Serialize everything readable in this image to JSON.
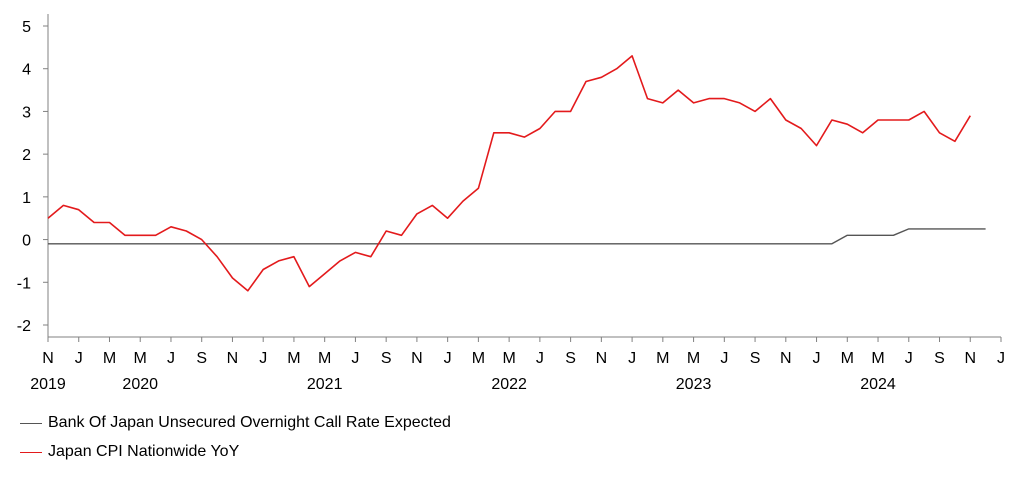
{
  "chart_data": {
    "type": "line",
    "ylim": [
      -2.2,
      5
    ],
    "yticks": [
      -2,
      -1,
      0,
      1,
      2,
      3,
      4,
      5
    ],
    "x_start": "2019-11",
    "x_end": "2025-01",
    "x_month_labels": [
      "N",
      "J",
      "M",
      "M",
      "J",
      "S",
      "N",
      "J",
      "M",
      "M",
      "J",
      "S",
      "N",
      "J",
      "M",
      "M",
      "J",
      "S",
      "N",
      "J",
      "M",
      "M",
      "J",
      "S",
      "N",
      "J",
      "M",
      "M",
      "J",
      "S",
      "N",
      "J",
      "M",
      "M",
      "J",
      "S",
      "N",
      "J"
    ],
    "year_labels": [
      {
        "label": "2019",
        "month": "2019-11"
      },
      {
        "label": "2020",
        "month": "2020-05"
      },
      {
        "label": "2021",
        "month": "2021-05"
      },
      {
        "label": "2022",
        "month": "2022-05"
      },
      {
        "label": "2023",
        "month": "2023-05"
      },
      {
        "label": "2024",
        "month": "2024-05"
      }
    ],
    "grid": false,
    "legend_position": "bottom-left",
    "series": [
      {
        "name": "Bank Of Japan Unsecured Overnight Call Rate Expected",
        "color": "#555555",
        "points": [
          [
            "2019-11",
            -0.1
          ],
          [
            "2024-02",
            -0.1
          ],
          [
            "2024-03",
            0.1
          ],
          [
            "2024-06",
            0.1
          ],
          [
            "2024-07",
            0.25
          ],
          [
            "2024-12",
            0.25
          ]
        ]
      },
      {
        "name": "Japan CPI Nationwide YoY",
        "color": "#e31a1c",
        "points": [
          [
            "2019-11",
            0.5
          ],
          [
            "2019-12",
            0.8
          ],
          [
            "2020-01",
            0.7
          ],
          [
            "2020-02",
            0.4
          ],
          [
            "2020-03",
            0.4
          ],
          [
            "2020-04",
            0.1
          ],
          [
            "2020-05",
            0.1
          ],
          [
            "2020-06",
            0.1
          ],
          [
            "2020-07",
            0.3
          ],
          [
            "2020-08",
            0.2
          ],
          [
            "2020-09",
            0.0
          ],
          [
            "2020-10",
            -0.4
          ],
          [
            "2020-11",
            -0.9
          ],
          [
            "2020-12",
            -1.2
          ],
          [
            "2021-01",
            -0.7
          ],
          [
            "2021-02",
            -0.5
          ],
          [
            "2021-03",
            -0.4
          ],
          [
            "2021-04",
            -1.1
          ],
          [
            "2021-05",
            -0.8
          ],
          [
            "2021-06",
            -0.5
          ],
          [
            "2021-07",
            -0.3
          ],
          [
            "2021-08",
            -0.4
          ],
          [
            "2021-09",
            0.2
          ],
          [
            "2021-10",
            0.1
          ],
          [
            "2021-11",
            0.6
          ],
          [
            "2021-12",
            0.8
          ],
          [
            "2022-01",
            0.5
          ],
          [
            "2022-02",
            0.9
          ],
          [
            "2022-03",
            1.2
          ],
          [
            "2022-04",
            2.5
          ],
          [
            "2022-05",
            2.5
          ],
          [
            "2022-06",
            2.4
          ],
          [
            "2022-07",
            2.6
          ],
          [
            "2022-08",
            3.0
          ],
          [
            "2022-09",
            3.0
          ],
          [
            "2022-10",
            3.7
          ],
          [
            "2022-11",
            3.8
          ],
          [
            "2022-12",
            4.0
          ],
          [
            "2023-01",
            4.3
          ],
          [
            "2023-02",
            3.3
          ],
          [
            "2023-03",
            3.2
          ],
          [
            "2023-04",
            3.5
          ],
          [
            "2023-05",
            3.2
          ],
          [
            "2023-06",
            3.3
          ],
          [
            "2023-07",
            3.3
          ],
          [
            "2023-08",
            3.2
          ],
          [
            "2023-09",
            3.0
          ],
          [
            "2023-10",
            3.3
          ],
          [
            "2023-11",
            2.8
          ],
          [
            "2023-12",
            2.6
          ],
          [
            "2024-01",
            2.2
          ],
          [
            "2024-02",
            2.8
          ],
          [
            "2024-03",
            2.7
          ],
          [
            "2024-04",
            2.5
          ],
          [
            "2024-05",
            2.8
          ],
          [
            "2024-06",
            2.8
          ],
          [
            "2024-07",
            2.8
          ],
          [
            "2024-08",
            3.0
          ],
          [
            "2024-09",
            2.5
          ],
          [
            "2024-10",
            2.3
          ],
          [
            "2024-11",
            2.9
          ]
        ]
      }
    ]
  }
}
